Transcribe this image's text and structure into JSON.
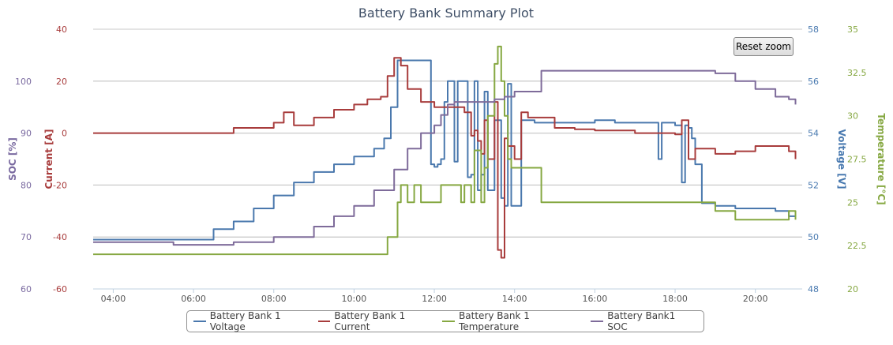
{
  "chart_data": {
    "type": "line",
    "title": "Battery Bank Summary Plot",
    "x_ticks": [
      "04:00",
      "06:00",
      "08:00",
      "10:00",
      "12:00",
      "14:00",
      "16:00",
      "18:00",
      "20:00"
    ],
    "x_range": [
      "03:30",
      "21:10"
    ],
    "grid": "horizontal",
    "legend_position": "bottom",
    "axes": {
      "soc": {
        "title": "SOC [%]",
        "ticks": [
          "60",
          "70",
          "80",
          "90",
          "100"
        ],
        "range": [
          60,
          110
        ],
        "color": "#7a6aa0"
      },
      "current": {
        "title": "Current [A]",
        "ticks": [
          "-60",
          "-40",
          "-20",
          "0",
          "20",
          "40"
        ],
        "range": [
          -60,
          40
        ],
        "color": "#a83c3c"
      },
      "voltage": {
        "title": "Voltage [V]",
        "ticks": [
          "48",
          "50",
          "52",
          "54",
          "56",
          "58"
        ],
        "range": [
          48,
          58
        ],
        "color": "#4a7ab0"
      },
      "temperature": {
        "title": "Temperature [°C]",
        "ticks": [
          "20",
          "22.5",
          "25",
          "27.5",
          "30",
          "32.5",
          "35"
        ],
        "range": [
          20,
          35
        ],
        "color": "#86a842"
      }
    },
    "series": [
      {
        "name": "Battery Bank 1 Voltage",
        "axis": "voltage",
        "color": "#4a78ad",
        "x": [
          "03:30",
          "05:00",
          "06:00",
          "06:30",
          "07:00",
          "07:30",
          "08:00",
          "08:30",
          "09:00",
          "09:30",
          "10:00",
          "10:30",
          "10:45",
          "10:55",
          "11:05",
          "11:15",
          "11:25",
          "11:30",
          "11:40",
          "11:50",
          "11:55",
          "12:00",
          "12:05",
          "12:10",
          "12:15",
          "12:20",
          "12:25",
          "12:30",
          "12:35",
          "12:40",
          "12:50",
          "12:55",
          "13:00",
          "13:05",
          "13:10",
          "13:15",
          "13:20",
          "13:30",
          "13:40",
          "13:45",
          "13:50",
          "13:55",
          "14:00",
          "14:10",
          "14:30",
          "15:00",
          "15:30",
          "16:00",
          "16:30",
          "17:00",
          "17:30",
          "17:35",
          "17:40",
          "17:45",
          "17:55",
          "18:00",
          "18:10",
          "18:15",
          "18:20",
          "18:25",
          "18:30",
          "18:40",
          "19:00",
          "19:30",
          "20:00",
          "20:30",
          "20:50",
          "21:00"
        ],
        "y": [
          49.9,
          49.9,
          49.9,
          50.3,
          50.6,
          51.1,
          51.6,
          52.1,
          52.5,
          52.8,
          53.1,
          53.4,
          53.8,
          55.0,
          56.8,
          56.8,
          56.8,
          56.8,
          56.8,
          56.8,
          52.8,
          52.7,
          52.8,
          53.0,
          55.2,
          56.0,
          56.0,
          52.9,
          56.0,
          56.0,
          52.3,
          52.4,
          56.0,
          51.8,
          52.4,
          55.6,
          51.8,
          54.5,
          51.5,
          51.2,
          55.9,
          51.2,
          51.2,
          54.5,
          54.4,
          54.4,
          54.4,
          54.5,
          54.4,
          54.4,
          54.4,
          53.0,
          54.4,
          54.4,
          54.4,
          54.3,
          52.1,
          54.3,
          54.2,
          53.8,
          52.8,
          51.3,
          51.2,
          51.1,
          51.1,
          51.0,
          50.8,
          50.9
        ]
      },
      {
        "name": "Battery Bank 1 Current",
        "axis": "current",
        "color": "#a83c3c",
        "x": [
          "03:30",
          "06:00",
          "07:00",
          "08:00",
          "08:15",
          "08:30",
          "09:00",
          "09:30",
          "10:00",
          "10:20",
          "10:40",
          "10:50",
          "11:00",
          "11:10",
          "11:20",
          "11:40",
          "12:00",
          "12:30",
          "12:45",
          "12:55",
          "13:00",
          "13:05",
          "13:10",
          "13:15",
          "13:20",
          "13:30",
          "13:35",
          "13:40",
          "13:45",
          "13:50",
          "14:00",
          "14:10",
          "14:20",
          "15:00",
          "15:30",
          "16:00",
          "17:00",
          "18:00",
          "18:10",
          "18:20",
          "18:30",
          "19:00",
          "19:30",
          "20:00",
          "20:30",
          "20:50",
          "21:00"
        ],
        "y": [
          0,
          0,
          2,
          4,
          8,
          3,
          6,
          9,
          11,
          13,
          14,
          22,
          29,
          26,
          17,
          12,
          10,
          10,
          8,
          -1,
          1,
          -3,
          -8,
          5,
          -10,
          12,
          -45,
          -48,
          -2,
          -5,
          -10,
          8,
          6,
          2,
          1.5,
          1,
          0,
          -0.5,
          5,
          -10,
          -6,
          -8,
          -7,
          -5,
          -5,
          -7,
          -10
        ]
      },
      {
        "name": "Battery Bank 1 Temperature",
        "axis": "temperature",
        "color": "#86a842",
        "x": [
          "03:30",
          "10:10",
          "10:50",
          "11:05",
          "11:10",
          "11:20",
          "11:30",
          "11:40",
          "12:00",
          "12:10",
          "12:30",
          "12:40",
          "12:45",
          "12:55",
          "13:00",
          "13:10",
          "13:15",
          "13:20",
          "13:30",
          "13:35",
          "13:40",
          "13:45",
          "13:50",
          "13:55",
          "14:00",
          "14:30",
          "14:40",
          "15:00",
          "17:00",
          "18:00",
          "19:00",
          "19:30",
          "20:00",
          "20:30",
          "20:50",
          "21:00"
        ],
        "y": [
          22,
          22,
          23,
          25,
          26,
          25,
          26,
          25,
          25,
          26,
          26,
          25,
          26,
          25,
          28,
          25,
          27,
          30,
          33,
          34,
          32,
          30,
          27.5,
          27,
          27,
          27,
          25,
          25,
          25,
          25,
          24.5,
          24,
          24,
          24,
          24.5,
          24
        ]
      },
      {
        "name": "Battery Bank1 SOC",
        "axis": "soc",
        "color": "#7e6b9a",
        "x": [
          "03:30",
          "04:30",
          "05:30",
          "07:00",
          "08:00",
          "09:00",
          "09:30",
          "10:00",
          "10:30",
          "11:00",
          "11:20",
          "11:40",
          "12:00",
          "12:10",
          "12:20",
          "12:30",
          "12:45",
          "13:00",
          "13:30",
          "13:45",
          "14:00",
          "14:40",
          "15:00",
          "16:00",
          "17:00",
          "18:00",
          "18:30",
          "19:00",
          "19:30",
          "20:00",
          "20:30",
          "20:50",
          "21:00"
        ],
        "y": [
          69,
          69,
          68.5,
          69,
          70,
          72,
          74,
          76,
          79,
          83,
          87,
          90,
          91.5,
          93.5,
          95.5,
          96,
          96,
          96,
          96.5,
          97,
          98,
          102,
          102,
          102,
          102,
          102,
          102,
          101.5,
          100,
          98.5,
          97,
          96.5,
          95.5
        ]
      }
    ]
  },
  "reset_zoom_label": "Reset zoom"
}
